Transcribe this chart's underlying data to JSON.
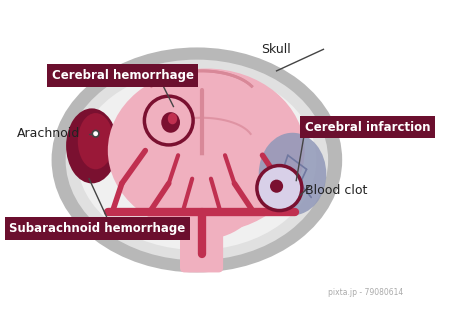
{
  "bg_color": "#ffffff",
  "skull_color": "#b8b8b8",
  "skull_fill": "#d8d8d8",
  "brain_color": "#f0b0bf",
  "brain_outline": "#e08898",
  "brain_fold": "#d88898",
  "artery_color": "#c03050",
  "hemorrhage_color": "#7a1030",
  "infarction_color": "#9098b8",
  "infarction_crack": "#7078a0",
  "arachnoid_color": "#7a1030",
  "label_box_color": "#6b0f2e",
  "label_text_color": "#ffffff",
  "plain_text_color": "#222222",
  "labels": {
    "cerebral_hemorrhage": "Cerebral hemorrhage",
    "arachnoid": "Arachnoid",
    "subarachnoid": "Subarachnoid hemorrhage",
    "skull": "Skull",
    "cerebral_infarction": "Cerebral infarction",
    "blood_clot": "Blood clot"
  },
  "watermark": "pixta.jp - 79080614"
}
